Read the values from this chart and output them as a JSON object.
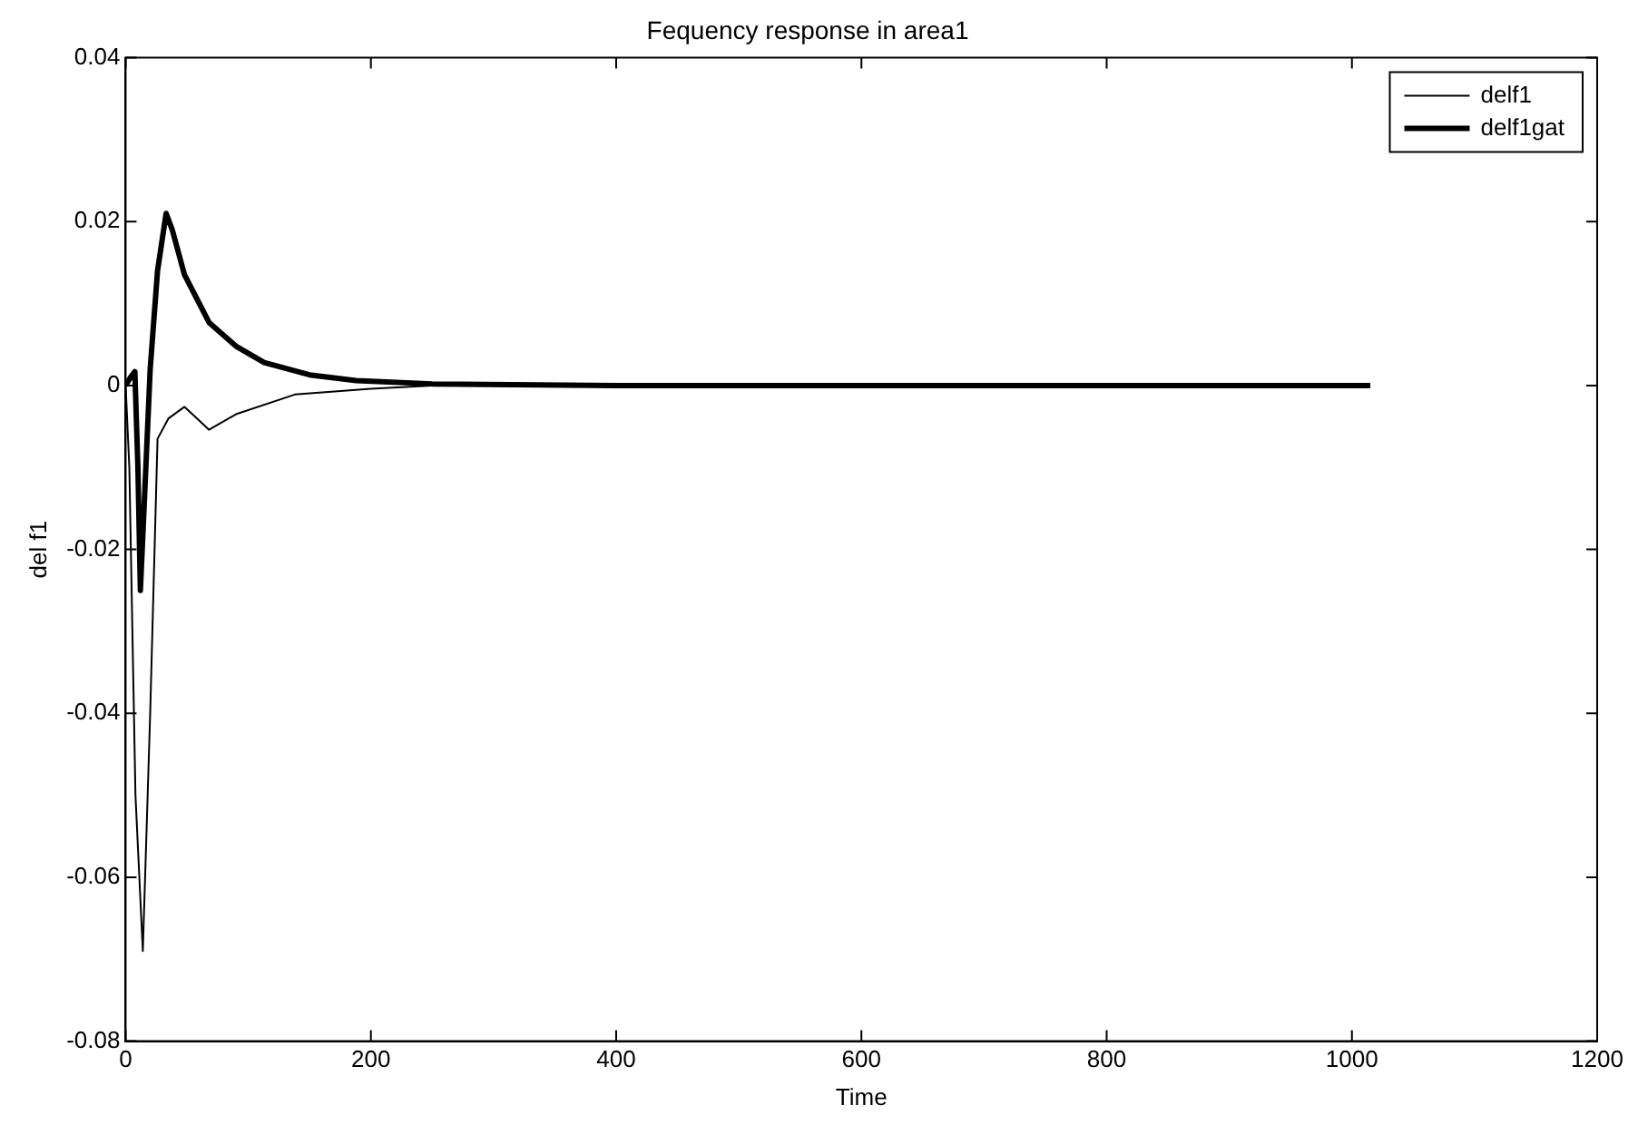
{
  "chart_data": {
    "type": "line",
    "title": "Fequency response in area1",
    "xlabel": "Time",
    "ylabel": "del f1",
    "xlim": [
      0,
      1200
    ],
    "xticks": [
      0,
      200,
      400,
      600,
      800,
      1000,
      1200
    ],
    "ylim": [
      -0.08,
      0.04
    ],
    "yticks": [
      -0.08,
      -0.06,
      -0.04,
      -0.02,
      0,
      0.02,
      0.04
    ],
    "grid": false,
    "legend": "top right",
    "marker": "none",
    "series": [
      {
        "name": "delf1",
        "color": "#000000",
        "x": [
          0,
          3,
          8,
          14,
          20,
          26,
          35,
          48,
          58,
          68,
          90,
          138,
          200,
          250,
          400,
          600,
          800,
          1015
        ],
        "values": [
          0,
          -0.01,
          -0.05,
          -0.069,
          -0.04,
          -0.0065,
          -0.004,
          -0.0026,
          -0.004,
          -0.0054,
          -0.0035,
          -0.0011,
          -0.0004,
          0,
          0,
          0,
          0,
          0
        ]
      },
      {
        "name": "delf1gat",
        "color": "#000000",
        "x": [
          0,
          4,
          7.5,
          10,
          12,
          15,
          20,
          26,
          33,
          38,
          48,
          68,
          90,
          113,
          150,
          188,
          250,
          400,
          600,
          800,
          1015
        ],
        "values": [
          0,
          0.001,
          0.0017,
          -0.01,
          -0.025,
          -0.015,
          0.002,
          0.014,
          0.021,
          0.019,
          0.0135,
          0.0077,
          0.0048,
          0.0028,
          0.0013,
          0.0006,
          0.0002,
          0,
          0,
          0,
          0
        ]
      }
    ]
  }
}
